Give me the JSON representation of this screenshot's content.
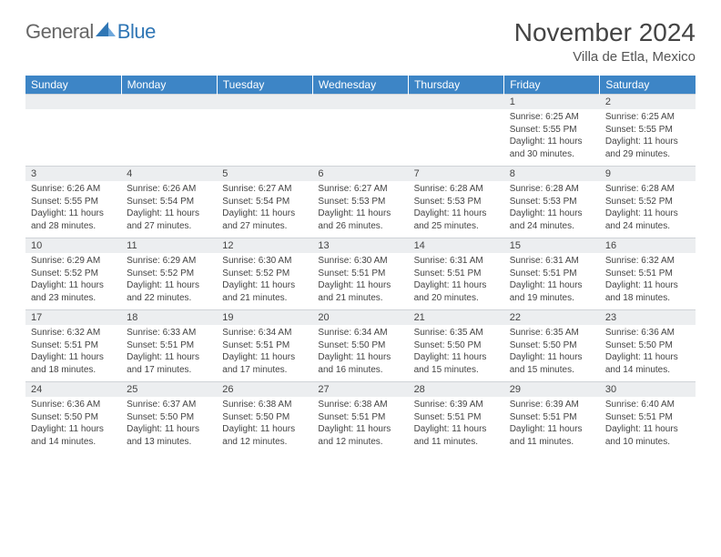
{
  "logo": {
    "general": "General",
    "blue": "Blue"
  },
  "title": "November 2024",
  "location": "Villa de Etla, Mexico",
  "colors": {
    "header_bg": "#3d85c6",
    "header_text": "#ffffff",
    "daynum_bg": "#eceef0",
    "border": "#cfd3d7",
    "text": "#444444",
    "logo_blue": "#2f76b5"
  },
  "weekdays": [
    "Sunday",
    "Monday",
    "Tuesday",
    "Wednesday",
    "Thursday",
    "Friday",
    "Saturday"
  ],
  "weeks": [
    [
      null,
      null,
      null,
      null,
      null,
      {
        "n": "1",
        "sr": "6:25 AM",
        "ss": "5:55 PM",
        "dl": "11 hours and 30 minutes."
      },
      {
        "n": "2",
        "sr": "6:25 AM",
        "ss": "5:55 PM",
        "dl": "11 hours and 29 minutes."
      }
    ],
    [
      {
        "n": "3",
        "sr": "6:26 AM",
        "ss": "5:55 PM",
        "dl": "11 hours and 28 minutes."
      },
      {
        "n": "4",
        "sr": "6:26 AM",
        "ss": "5:54 PM",
        "dl": "11 hours and 27 minutes."
      },
      {
        "n": "5",
        "sr": "6:27 AM",
        "ss": "5:54 PM",
        "dl": "11 hours and 27 minutes."
      },
      {
        "n": "6",
        "sr": "6:27 AM",
        "ss": "5:53 PM",
        "dl": "11 hours and 26 minutes."
      },
      {
        "n": "7",
        "sr": "6:28 AM",
        "ss": "5:53 PM",
        "dl": "11 hours and 25 minutes."
      },
      {
        "n": "8",
        "sr": "6:28 AM",
        "ss": "5:53 PM",
        "dl": "11 hours and 24 minutes."
      },
      {
        "n": "9",
        "sr": "6:28 AM",
        "ss": "5:52 PM",
        "dl": "11 hours and 24 minutes."
      }
    ],
    [
      {
        "n": "10",
        "sr": "6:29 AM",
        "ss": "5:52 PM",
        "dl": "11 hours and 23 minutes."
      },
      {
        "n": "11",
        "sr": "6:29 AM",
        "ss": "5:52 PM",
        "dl": "11 hours and 22 minutes."
      },
      {
        "n": "12",
        "sr": "6:30 AM",
        "ss": "5:52 PM",
        "dl": "11 hours and 21 minutes."
      },
      {
        "n": "13",
        "sr": "6:30 AM",
        "ss": "5:51 PM",
        "dl": "11 hours and 21 minutes."
      },
      {
        "n": "14",
        "sr": "6:31 AM",
        "ss": "5:51 PM",
        "dl": "11 hours and 20 minutes."
      },
      {
        "n": "15",
        "sr": "6:31 AM",
        "ss": "5:51 PM",
        "dl": "11 hours and 19 minutes."
      },
      {
        "n": "16",
        "sr": "6:32 AM",
        "ss": "5:51 PM",
        "dl": "11 hours and 18 minutes."
      }
    ],
    [
      {
        "n": "17",
        "sr": "6:32 AM",
        "ss": "5:51 PM",
        "dl": "11 hours and 18 minutes."
      },
      {
        "n": "18",
        "sr": "6:33 AM",
        "ss": "5:51 PM",
        "dl": "11 hours and 17 minutes."
      },
      {
        "n": "19",
        "sr": "6:34 AM",
        "ss": "5:51 PM",
        "dl": "11 hours and 17 minutes."
      },
      {
        "n": "20",
        "sr": "6:34 AM",
        "ss": "5:50 PM",
        "dl": "11 hours and 16 minutes."
      },
      {
        "n": "21",
        "sr": "6:35 AM",
        "ss": "5:50 PM",
        "dl": "11 hours and 15 minutes."
      },
      {
        "n": "22",
        "sr": "6:35 AM",
        "ss": "5:50 PM",
        "dl": "11 hours and 15 minutes."
      },
      {
        "n": "23",
        "sr": "6:36 AM",
        "ss": "5:50 PM",
        "dl": "11 hours and 14 minutes."
      }
    ],
    [
      {
        "n": "24",
        "sr": "6:36 AM",
        "ss": "5:50 PM",
        "dl": "11 hours and 14 minutes."
      },
      {
        "n": "25",
        "sr": "6:37 AM",
        "ss": "5:50 PM",
        "dl": "11 hours and 13 minutes."
      },
      {
        "n": "26",
        "sr": "6:38 AM",
        "ss": "5:50 PM",
        "dl": "11 hours and 12 minutes."
      },
      {
        "n": "27",
        "sr": "6:38 AM",
        "ss": "5:51 PM",
        "dl": "11 hours and 12 minutes."
      },
      {
        "n": "28",
        "sr": "6:39 AM",
        "ss": "5:51 PM",
        "dl": "11 hours and 11 minutes."
      },
      {
        "n": "29",
        "sr": "6:39 AM",
        "ss": "5:51 PM",
        "dl": "11 hours and 11 minutes."
      },
      {
        "n": "30",
        "sr": "6:40 AM",
        "ss": "5:51 PM",
        "dl": "11 hours and 10 minutes."
      }
    ]
  ],
  "labels": {
    "sunrise": "Sunrise:",
    "sunset": "Sunset:",
    "daylight": "Daylight:"
  }
}
